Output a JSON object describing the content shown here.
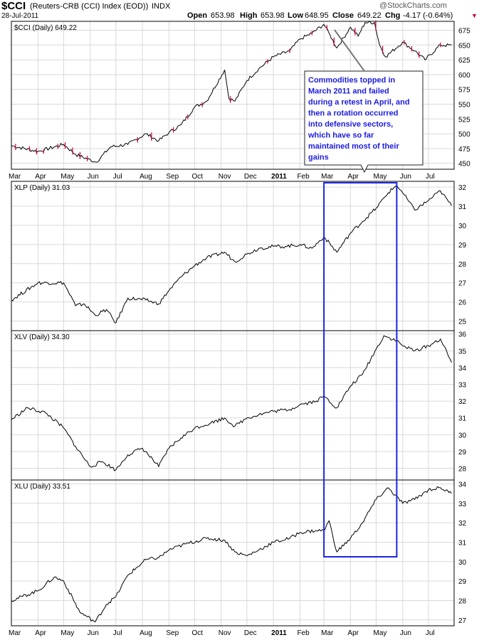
{
  "header": {
    "symbol": "$CCI",
    "name": "(Reuters-CRB (CCI) Index (EOD))",
    "exchange": "INDX",
    "date": "28-Jul-2011",
    "watermark": "@StockCharts.com",
    "open_label": "Open",
    "open": "653.98",
    "high_label": "High",
    "high": "653.98",
    "low_label": "Low",
    "low": "648.95",
    "close_label": "Close",
    "close": "649.22",
    "chg_label": "Chg",
    "chg": "-4.17 (-0.64%)"
  },
  "chart_data": [
    {
      "type": "line",
      "legend": "$CCI (Daily) 649.22",
      "ylim": [
        440,
        690
      ],
      "yticks": [
        450,
        475,
        500,
        525,
        550,
        575,
        600,
        625,
        650,
        675
      ],
      "x": [
        "2010-03-01",
        "2010-04-01",
        "2010-05-01",
        "2010-05-15",
        "2010-06-08",
        "2010-06-25",
        "2010-07-15",
        "2010-08-05",
        "2010-08-20",
        "2010-09-01",
        "2010-09-15",
        "2010-10-01",
        "2010-10-15",
        "2010-11-05",
        "2010-11-10",
        "2010-11-17",
        "2010-12-01",
        "2010-12-15",
        "2011-01-01",
        "2011-01-20",
        "2011-02-01",
        "2011-02-15",
        "2011-03-01",
        "2011-03-08",
        "2011-03-16",
        "2011-04-01",
        "2011-04-10",
        "2011-04-18",
        "2011-04-29",
        "2011-05-05",
        "2011-05-12",
        "2011-06-01",
        "2011-06-15",
        "2011-06-27",
        "2011-07-15",
        "2011-07-28"
      ],
      "values": [
        480,
        470,
        482,
        465,
        452,
        478,
        482,
        500,
        488,
        502,
        515,
        545,
        555,
        608,
        560,
        555,
        590,
        610,
        630,
        640,
        660,
        670,
        685,
        667,
        645,
        680,
        665,
        688,
        688,
        650,
        630,
        655,
        640,
        625,
        650,
        649.22
      ]
    },
    {
      "type": "line",
      "legend": "XLP (Daily) 31.03",
      "ylim": [
        24.5,
        32.3
      ],
      "yticks": [
        25,
        26,
        27,
        28,
        29,
        30,
        31,
        32
      ],
      "x": [
        "2010-03-01",
        "2010-04-01",
        "2010-05-01",
        "2010-05-15",
        "2010-05-25",
        "2010-06-07",
        "2010-06-20",
        "2010-07-01",
        "2010-07-15",
        "2010-08-05",
        "2010-08-20",
        "2010-09-01",
        "2010-09-15",
        "2010-10-01",
        "2010-10-15",
        "2010-11-05",
        "2010-11-17",
        "2010-12-01",
        "2010-12-15",
        "2011-01-01",
        "2011-01-15",
        "2011-02-01",
        "2011-02-15",
        "2011-03-01",
        "2011-03-16",
        "2011-04-01",
        "2011-04-15",
        "2011-05-01",
        "2011-05-15",
        "2011-05-25",
        "2011-06-01",
        "2011-06-15",
        "2011-07-01",
        "2011-07-15",
        "2011-07-28"
      ],
      "values": [
        26.1,
        27.0,
        27.0,
        25.8,
        25.9,
        25.3,
        25.6,
        24.9,
        26.2,
        26.1,
        25.9,
        26.6,
        27.3,
        27.9,
        28.3,
        28.6,
        28.1,
        28.5,
        28.8,
        28.9,
        28.9,
        29.0,
        28.8,
        29.4,
        28.6,
        29.6,
        30.2,
        30.9,
        31.7,
        32.1,
        31.7,
        30.8,
        31.3,
        31.8,
        31.03
      ]
    },
    {
      "type": "line",
      "legend": "XLV (Daily) 34.30",
      "ylim": [
        27.3,
        36.2
      ],
      "yticks": [
        28,
        29,
        30,
        31,
        32,
        33,
        34,
        35,
        36
      ],
      "x": [
        "2010-03-01",
        "2010-03-20",
        "2010-04-10",
        "2010-05-01",
        "2010-05-15",
        "2010-06-01",
        "2010-06-15",
        "2010-07-01",
        "2010-07-15",
        "2010-08-01",
        "2010-08-20",
        "2010-09-01",
        "2010-09-15",
        "2010-10-01",
        "2010-10-20",
        "2010-11-05",
        "2010-11-17",
        "2010-12-01",
        "2010-12-15",
        "2011-01-01",
        "2011-01-20",
        "2011-02-01",
        "2011-02-20",
        "2011-03-01",
        "2011-03-16",
        "2011-04-01",
        "2011-04-15",
        "2011-05-01",
        "2011-05-10",
        "2011-05-25",
        "2011-06-01",
        "2011-06-15",
        "2011-07-01",
        "2011-07-15",
        "2011-07-28"
      ],
      "values": [
        30.9,
        31.6,
        31.3,
        30.4,
        29.3,
        28.1,
        28.4,
        27.9,
        28.8,
        29.2,
        28.1,
        29.2,
        29.8,
        30.4,
        30.7,
        31.0,
        30.5,
        31.0,
        31.2,
        31.4,
        31.5,
        31.8,
        32.0,
        32.3,
        31.6,
        32.9,
        33.6,
        35.1,
        35.9,
        35.6,
        35.3,
        35.0,
        35.3,
        35.7,
        34.3
      ]
    },
    {
      "type": "line",
      "legend": "XLU (Daily) 33.51",
      "ylim": [
        26.7,
        34.2
      ],
      "yticks": [
        27,
        28,
        29,
        30,
        31,
        32,
        33,
        34
      ],
      "x": [
        "2010-03-01",
        "2010-04-01",
        "2010-04-20",
        "2010-05-01",
        "2010-05-20",
        "2010-06-07",
        "2010-06-20",
        "2010-07-01",
        "2010-07-15",
        "2010-08-05",
        "2010-08-20",
        "2010-09-01",
        "2010-09-20",
        "2010-10-15",
        "2010-11-05",
        "2010-11-17",
        "2010-12-01",
        "2010-12-15",
        "2011-01-01",
        "2011-01-20",
        "2011-02-01",
        "2011-02-20",
        "2011-03-01",
        "2011-03-07",
        "2011-03-16",
        "2011-04-01",
        "2011-04-15",
        "2011-05-01",
        "2011-05-15",
        "2011-06-01",
        "2011-06-15",
        "2011-07-01",
        "2011-07-15",
        "2011-07-28"
      ],
      "values": [
        28.0,
        28.5,
        29.2,
        29.0,
        27.4,
        26.9,
        27.8,
        28.2,
        29.3,
        30.1,
        30.2,
        30.6,
        30.9,
        31.2,
        31.1,
        30.5,
        30.3,
        30.6,
        31.0,
        31.2,
        31.5,
        31.6,
        31.6,
        32.1,
        30.5,
        31.2,
        32.0,
        33.2,
        33.8,
        33.0,
        33.2,
        33.7,
        33.8,
        33.51
      ]
    }
  ],
  "x_axis": {
    "labels": [
      "Mar",
      "Apr",
      "May",
      "Jun",
      "Jul",
      "Aug",
      "Sep",
      "Oct",
      "Nov",
      "Dec",
      "2011",
      "Feb",
      "Mar",
      "Apr",
      "May",
      "Jun",
      "Jul"
    ],
    "dates": [
      "2010-03-01",
      "2010-04-01",
      "2010-05-01",
      "2010-06-01",
      "2010-07-01",
      "2010-08-01",
      "2010-09-01",
      "2010-10-01",
      "2010-11-01",
      "2010-12-01",
      "2011-01-01",
      "2011-02-01",
      "2011-03-01",
      "2011-04-01",
      "2011-05-01",
      "2011-06-01",
      "2011-07-01"
    ],
    "bold_label": "2011"
  },
  "annotation": {
    "lines": [
      "Commodities topped in",
      "March 2011 and failed",
      "during a retest in April, and",
      "then a rotation occurred",
      "into defensive sectors,",
      "which have so far",
      "maintained most of their",
      "gains"
    ]
  },
  "highlight": {
    "start": "2011-03-01",
    "end": "2011-05-25"
  },
  "colors": {
    "line": "#000000",
    "grid": "#d9d9d9",
    "highlight": "#1a25e0",
    "annotation_text": "#1c1ce0",
    "down_candle": "#cc0033",
    "chg": "#cc0033",
    "arrow": "#cc0033"
  }
}
